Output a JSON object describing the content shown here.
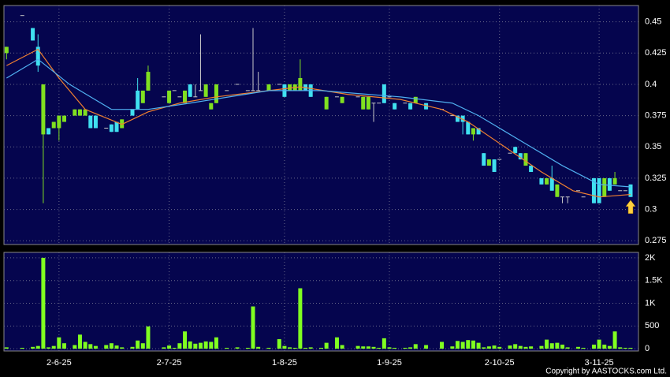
{
  "chart_data": {
    "type": "candlestick",
    "x": [
      0,
      3,
      5,
      6,
      7,
      8,
      9,
      10,
      11,
      13,
      14,
      15,
      16,
      17,
      19,
      20,
      21,
      22,
      24,
      25,
      26,
      27,
      30,
      31,
      32,
      33,
      34,
      35,
      36,
      37,
      38,
      39,
      40,
      42,
      44,
      46,
      47,
      48,
      50,
      52,
      53,
      54,
      55,
      56,
      57,
      58,
      60,
      61,
      63,
      64,
      67,
      68,
      69,
      70,
      71,
      72,
      73,
      74,
      76,
      77,
      78,
      80,
      83,
      85,
      86,
      87,
      88,
      89,
      90,
      91,
      92,
      93,
      94,
      96,
      97,
      98,
      99,
      100,
      102,
      103,
      104,
      105,
      106,
      107,
      109,
      110,
      112,
      113,
      114,
      115,
      116,
      117,
      118,
      119
    ],
    "open": [
      0.425,
      0.455,
      0.445,
      0.43,
      0.36,
      0.365,
      0.365,
      0.365,
      0.37,
      0.375,
      0.375,
      0.375,
      0.375,
      0.375,
      0.365,
      0.368,
      0.37,
      0.365,
      0.38,
      0.395,
      0.385,
      0.395,
      0.39,
      0.385,
      0.395,
      0.39,
      0.385,
      0.4,
      0.39,
      0.395,
      0.39,
      0.38,
      0.385,
      0.395,
      0.4,
      0.395,
      0.395,
      0.395,
      0.395,
      0.4,
      0.4,
      0.395,
      0.395,
      0.395,
      0.4,
      0.4,
      0.395,
      0.38,
      0.39,
      0.385,
      0.39,
      0.38,
      0.38,
      0.385,
      0.385,
      0.4,
      0.39,
      0.385,
      0.385,
      0.385,
      0.385,
      0.385,
      0.38,
      0.375,
      0.375,
      0.375,
      0.37,
      0.36,
      0.365,
      0.345,
      0.335,
      0.34,
      0.34,
      0.345,
      0.35,
      0.345,
      0.335,
      0.335,
      0.325,
      0.32,
      0.325,
      0.31,
      0.31,
      0.31,
      0.315,
      0.31,
      0.325,
      0.325,
      0.31,
      0.325,
      0.32,
      0.315,
      0.315,
      0.32
    ],
    "high": [
      0.43,
      0.455,
      0.445,
      0.44,
      0.4,
      0.365,
      0.37,
      0.375,
      0.375,
      0.38,
      0.38,
      0.38,
      0.375,
      0.375,
      0.365,
      0.368,
      0.37,
      0.372,
      0.38,
      0.405,
      0.395,
      0.415,
      0.39,
      0.395,
      0.395,
      0.39,
      0.395,
      0.4,
      0.4,
      0.44,
      0.4,
      0.385,
      0.4,
      0.395,
      0.4,
      0.395,
      0.445,
      0.41,
      0.4,
      0.4,
      0.4,
      0.4,
      0.4,
      0.42,
      0.4,
      0.4,
      0.395,
      0.39,
      0.39,
      0.39,
      0.39,
      0.39,
      0.39,
      0.385,
      0.385,
      0.4,
      0.39,
      0.385,
      0.385,
      0.385,
      0.39,
      0.385,
      0.38,
      0.375,
      0.375,
      0.375,
      0.37,
      0.365,
      0.365,
      0.345,
      0.34,
      0.34,
      0.34,
      0.345,
      0.35,
      0.345,
      0.345,
      0.335,
      0.325,
      0.325,
      0.335,
      0.32,
      0.31,
      0.31,
      0.315,
      0.31,
      0.325,
      0.325,
      0.325,
      0.325,
      0.33,
      0.315,
      0.315,
      0.32
    ],
    "low": [
      0.42,
      0.455,
      0.435,
      0.41,
      0.305,
      0.36,
      0.365,
      0.355,
      0.37,
      0.375,
      0.375,
      0.375,
      0.365,
      0.365,
      0.365,
      0.362,
      0.362,
      0.365,
      0.375,
      0.38,
      0.385,
      0.395,
      0.39,
      0.385,
      0.395,
      0.39,
      0.385,
      0.39,
      0.39,
      0.395,
      0.39,
      0.38,
      0.385,
      0.395,
      0.4,
      0.395,
      0.395,
      0.395,
      0.395,
      0.4,
      0.39,
      0.395,
      0.395,
      0.395,
      0.395,
      0.39,
      0.395,
      0.38,
      0.39,
      0.385,
      0.39,
      0.38,
      0.38,
      0.37,
      0.385,
      0.385,
      0.39,
      0.38,
      0.385,
      0.38,
      0.385,
      0.38,
      0.38,
      0.375,
      0.37,
      0.36,
      0.36,
      0.355,
      0.36,
      0.335,
      0.335,
      0.33,
      0.34,
      0.345,
      0.345,
      0.34,
      0.335,
      0.33,
      0.32,
      0.32,
      0.315,
      0.31,
      0.305,
      0.305,
      0.315,
      0.31,
      0.305,
      0.305,
      0.31,
      0.315,
      0.32,
      0.315,
      0.315,
      0.31
    ],
    "close": [
      0.43,
      0.455,
      0.435,
      0.415,
      0.4,
      0.36,
      0.37,
      0.375,
      0.375,
      0.38,
      0.38,
      0.38,
      0.365,
      0.365,
      0.365,
      0.362,
      0.362,
      0.372,
      0.375,
      0.38,
      0.395,
      0.41,
      0.39,
      0.395,
      0.395,
      0.39,
      0.395,
      0.39,
      0.39,
      0.395,
      0.4,
      0.385,
      0.4,
      0.395,
      0.4,
      0.395,
      0.395,
      0.395,
      0.4,
      0.4,
      0.39,
      0.4,
      0.4,
      0.405,
      0.395,
      0.39,
      0.395,
      0.39,
      0.39,
      0.39,
      0.39,
      0.39,
      0.39,
      0.385,
      0.385,
      0.385,
      0.39,
      0.38,
      0.385,
      0.38,
      0.39,
      0.38,
      0.38,
      0.375,
      0.37,
      0.37,
      0.36,
      0.365,
      0.36,
      0.335,
      0.34,
      0.33,
      0.34,
      0.345,
      0.345,
      0.34,
      0.345,
      0.33,
      0.32,
      0.325,
      0.315,
      0.32,
      0.31,
      0.31,
      0.315,
      0.31,
      0.305,
      0.305,
      0.325,
      0.315,
      0.325,
      0.315,
      0.315,
      0.31
    ],
    "up_color": "#80e020",
    "down_color": "#40e0f0",
    "flat_color": "#c8c8c8",
    "ma_series": [
      {
        "color": "#f08030",
        "x": [
          0,
          6,
          10,
          15,
          22,
          27,
          33,
          40,
          50,
          56,
          65,
          75,
          83,
          88,
          95,
          102,
          108,
          113,
          119
        ],
        "values": [
          0.415,
          0.428,
          0.405,
          0.38,
          0.368,
          0.378,
          0.385,
          0.39,
          0.395,
          0.398,
          0.392,
          0.388,
          0.38,
          0.37,
          0.35,
          0.33,
          0.315,
          0.31,
          0.312
        ]
      },
      {
        "color": "#50b0f0",
        "x": [
          0,
          6,
          12,
          20,
          27,
          35,
          50,
          60,
          75,
          85,
          90,
          98,
          106,
          113,
          119
        ],
        "values": [
          0.405,
          0.42,
          0.4,
          0.38,
          0.38,
          0.385,
          0.395,
          0.395,
          0.39,
          0.385,
          0.375,
          0.355,
          0.335,
          0.32,
          0.318
        ]
      }
    ],
    "xlim": [
      -0.5,
      120.5
    ],
    "xticks": [
      {
        "value": 10,
        "label": "2-6-25"
      },
      {
        "value": 31,
        "label": "2-7-25"
      },
      {
        "value": 53,
        "label": "1-8-25"
      },
      {
        "value": 73,
        "label": "1-9-25"
      },
      {
        "value": 94,
        "label": "2-10-25"
      },
      {
        "value": 113,
        "label": "3-11-25"
      }
    ],
    "ylim": [
      0.272,
      0.463
    ],
    "yticks": [
      0.275,
      0.3,
      0.325,
      0.35,
      0.375,
      0.4,
      0.425,
      0.45
    ],
    "volume": {
      "color": "#80ff20",
      "values": [
        30,
        20,
        40,
        60,
        2000,
        30,
        60,
        250,
        120,
        80,
        310,
        150,
        100,
        60,
        80,
        120,
        70,
        30,
        40,
        180,
        120,
        490,
        30,
        70,
        20,
        120,
        380,
        160,
        110,
        130,
        160,
        150,
        250,
        20,
        30,
        20,
        930,
        40,
        20,
        210,
        60,
        30,
        20,
        1330,
        20,
        30,
        20,
        130,
        250,
        80,
        60,
        50,
        50,
        40,
        20,
        230,
        30,
        20,
        20,
        30,
        100,
        80,
        150,
        50,
        170,
        150,
        190,
        180,
        130,
        30,
        50,
        70,
        40,
        70,
        100,
        60,
        40,
        50,
        60,
        200,
        120,
        130,
        90,
        30,
        40,
        20,
        90,
        200,
        90,
        60,
        380,
        30,
        20,
        20
      ],
      "ylim": [
        -50,
        2120
      ],
      "yticks": [
        0,
        500,
        {
          "value": 1000,
          "label": "1K"
        },
        {
          "value": 1500,
          "label": "1.5K"
        },
        {
          "value": 2000,
          "label": "2K"
        }
      ]
    },
    "grid": true,
    "copyright": "Copyright by AASTOCKS.com Ltd."
  }
}
